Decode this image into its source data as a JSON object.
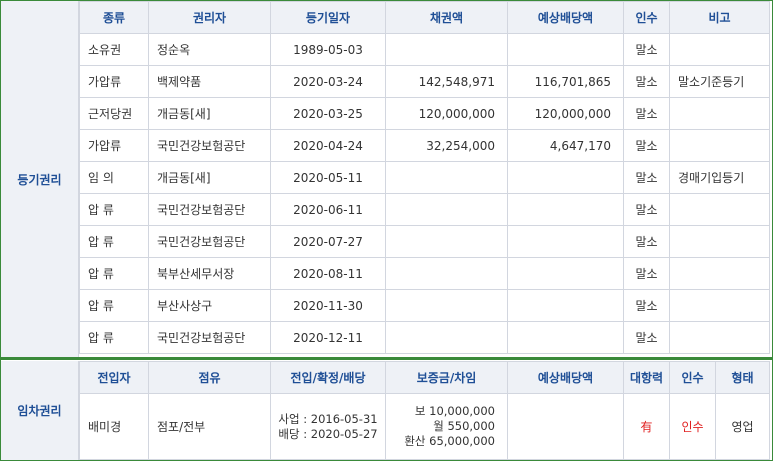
{
  "registry": {
    "label": "등기권리",
    "headers": [
      "종류",
      "권리자",
      "등기일자",
      "채권액",
      "예상배당액",
      "인수",
      "비고"
    ],
    "rows": [
      {
        "type": "소유권",
        "holder": "정순옥",
        "date": "1989-05-03",
        "amount": "",
        "dividend": "",
        "assume": "말소",
        "note": ""
      },
      {
        "type": "가압류",
        "holder": "백제약품",
        "date": "2020-03-24",
        "amount": "142,548,971",
        "dividend": "116,701,865",
        "assume": "말소",
        "note": "말소기준등기"
      },
      {
        "type": "근저당권",
        "holder": "개금동[새]",
        "date": "2020-03-25",
        "amount": "120,000,000",
        "dividend": "120,000,000",
        "assume": "말소",
        "note": ""
      },
      {
        "type": "가압류",
        "holder": "국민건강보험공단",
        "date": "2020-04-24",
        "amount": "32,254,000",
        "dividend": "4,647,170",
        "assume": "말소",
        "note": ""
      },
      {
        "type": "임    의",
        "holder": "개금동[새]",
        "date": "2020-05-11",
        "amount": "",
        "dividend": "",
        "assume": "말소",
        "note": "경매기입등기"
      },
      {
        "type": "압    류",
        "holder": "국민건강보험공단",
        "date": "2020-06-11",
        "amount": "",
        "dividend": "",
        "assume": "말소",
        "note": ""
      },
      {
        "type": "압    류",
        "holder": "국민건강보험공단",
        "date": "2020-07-27",
        "amount": "",
        "dividend": "",
        "assume": "말소",
        "note": ""
      },
      {
        "type": "압    류",
        "holder": "북부산세무서장",
        "date": "2020-08-11",
        "amount": "",
        "dividend": "",
        "assume": "말소",
        "note": ""
      },
      {
        "type": "압    류",
        "holder": "부산사상구",
        "date": "2020-11-30",
        "amount": "",
        "dividend": "",
        "assume": "말소",
        "note": ""
      },
      {
        "type": "압    류",
        "holder": "국민건강보험공단",
        "date": "2020-12-11",
        "amount": "",
        "dividend": "",
        "assume": "말소",
        "note": ""
      }
    ]
  },
  "tenant": {
    "label": "임차권리",
    "headers": [
      "전입자",
      "점유",
      "전입/확정/배당",
      "보증금/차임",
      "예상배당액",
      "대항력",
      "인수",
      "형태"
    ],
    "row": {
      "name": "배미경",
      "occupancy": "점포/전부",
      "move_in": "사업 : 2016-05-31",
      "distribution": "배당 : 2020-05-27",
      "deposit": "보 10,000,000",
      "rent": "월 550,000",
      "converted": "환산 65,000,000",
      "dividend": "",
      "opposing_power": "有",
      "assume": "인수",
      "form": "영업"
    }
  },
  "colors": {
    "border_green": "#3a8a3a",
    "header_bg": "#eef1f6",
    "header_text": "#1f4f96",
    "accent_red": "#e02020"
  }
}
